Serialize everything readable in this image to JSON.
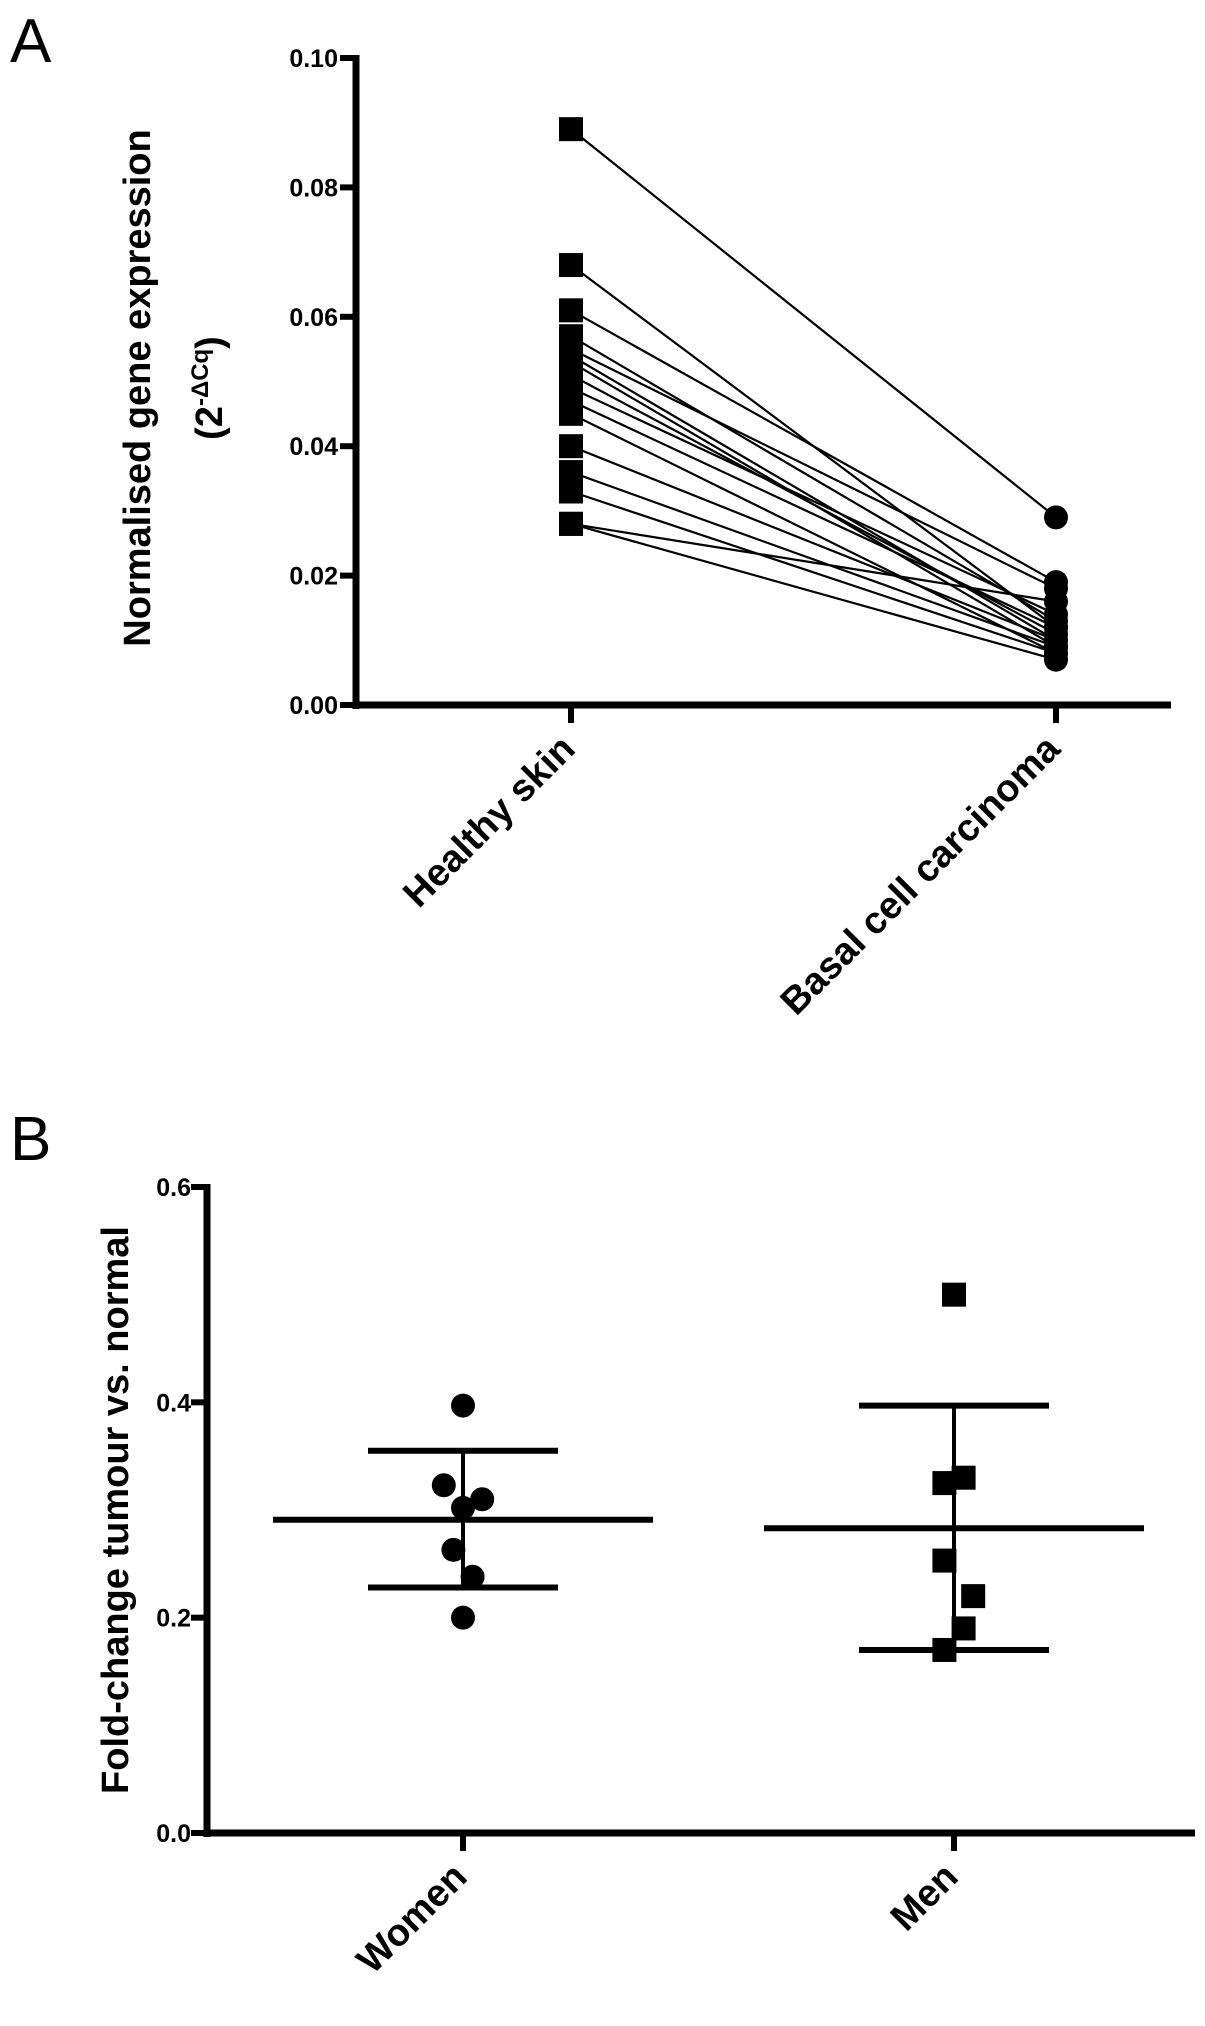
{
  "chart_data": [
    {
      "panel": "A",
      "type": "line",
      "subtype": "paired-dot",
      "ylabel_line1": "Normalised gene expression",
      "ylabel_line2_base": "(2",
      "ylabel_line2_sup": "-ΔCq",
      "ylabel_line2_end": ")",
      "categories": [
        "Healthy skin",
        "Basal cell carcinoma"
      ],
      "ylim": [
        0,
        0.1
      ],
      "yticks": [
        "0.00",
        "0.02",
        "0.04",
        "0.06",
        "0.08",
        "0.10"
      ],
      "ytick_values": [
        0,
        0.02,
        0.04,
        0.06,
        0.08,
        0.1
      ],
      "pairs": [
        [
          0.089,
          0.029
        ],
        [
          0.068,
          0.012
        ],
        [
          0.061,
          0.019
        ],
        [
          0.057,
          0.013
        ],
        [
          0.055,
          0.018
        ],
        [
          0.054,
          0.01
        ],
        [
          0.053,
          0.009
        ],
        [
          0.051,
          0.011
        ],
        [
          0.049,
          0.014
        ],
        [
          0.047,
          0.012
        ],
        [
          0.045,
          0.008
        ],
        [
          0.04,
          0.01
        ],
        [
          0.036,
          0.009
        ],
        [
          0.033,
          0.008
        ],
        [
          0.028,
          0.016
        ],
        [
          0.028,
          0.007
        ]
      ],
      "markers": [
        "square",
        "circle"
      ],
      "color": "#000000"
    },
    {
      "panel": "B",
      "type": "scatter",
      "subtype": "dot-plot-mean-sd",
      "ylabel": "Fold-change tumour vs. normal",
      "categories": [
        "Women",
        "Men"
      ],
      "ylim": [
        0,
        0.6
      ],
      "yticks": [
        "0.0",
        "0.2",
        "0.4",
        "0.6"
      ],
      "ytick_values": [
        0,
        0.2,
        0.4,
        0.6
      ],
      "series": [
        {
          "name": "Women",
          "marker": "circle",
          "values": [
            0.397,
            0.323,
            0.31,
            0.302,
            0.263,
            0.238,
            0.2
          ],
          "offsets": [
            0,
            -0.6,
            0.6,
            0,
            -0.3,
            0.3,
            0
          ],
          "mean": 0.291,
          "sd_upper": 0.355,
          "sd_lower": 0.228
        },
        {
          "name": "Men",
          "marker": "square",
          "values": [
            0.5,
            0.33,
            0.325,
            0.253,
            0.22,
            0.19,
            0.17
          ],
          "offsets": [
            0,
            0.3,
            -0.3,
            -0.3,
            0.6,
            0.3,
            -0.3
          ],
          "mean": 0.283,
          "sd_upper": 0.397,
          "sd_lower": 0.17
        }
      ],
      "color": "#000000"
    }
  ]
}
